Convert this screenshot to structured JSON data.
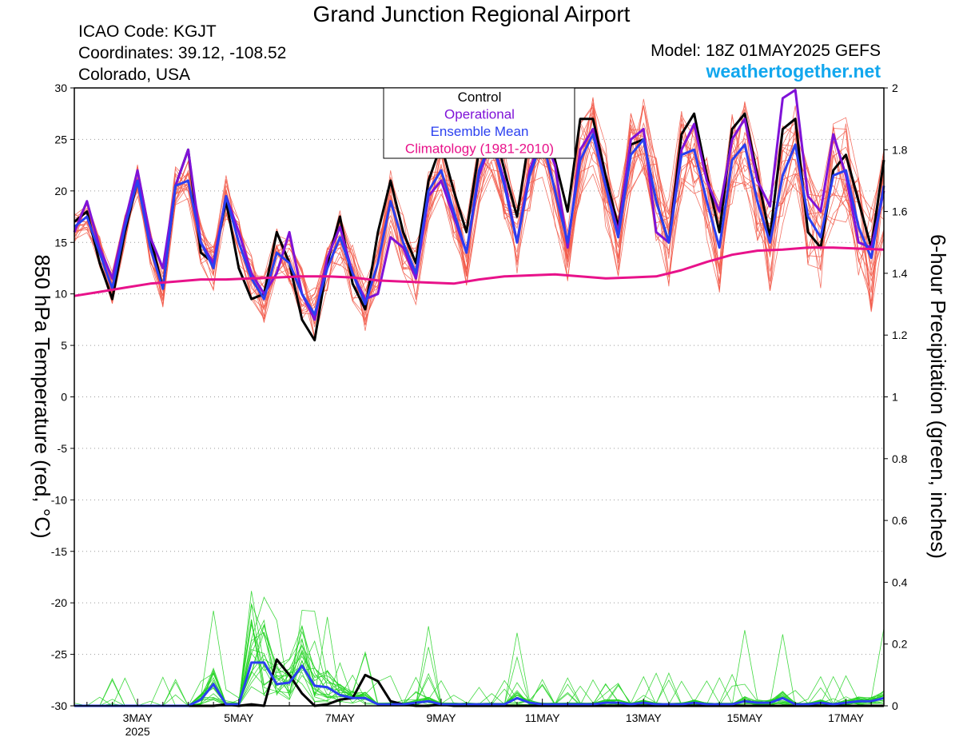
{
  "header": {
    "title": "Grand Junction Regional Airport",
    "icao": "ICAO Code: KGJT",
    "coordinates": "Coordinates: 39.12, -108.52",
    "region": "Colorado, USA",
    "model": "Model: 18Z 01MAY2025 GEFS",
    "site": "weathertogether.net"
  },
  "chart_data": {
    "type": "line",
    "title": "Grand Junction Regional Airport",
    "ylabel_left": "850 hPa Temperature (red, °C)",
    "ylabel_right": "6-hour Precipitation (green, inches)",
    "ylim_left": [
      -30,
      30
    ],
    "ylim_right": [
      0,
      2
    ],
    "y_ticks_left": [
      "30",
      "25",
      "20",
      "15",
      "10",
      "5",
      "0",
      "-5",
      "-10",
      "-15",
      "-20",
      "-25",
      "-30"
    ],
    "y_ticks_right": [
      "2",
      "1.8",
      "1.6",
      "1.4",
      "1.2",
      "1",
      "0.8",
      "0.6",
      "0.4",
      "0.2",
      "0"
    ],
    "x_ticks": [
      {
        "day": 3,
        "label": "3MAY",
        "sub": "2025"
      },
      {
        "day": 5,
        "label": "5MAY",
        "sub": ""
      },
      {
        "day": 7,
        "label": "7MAY",
        "sub": ""
      },
      {
        "day": 9,
        "label": "9MAY",
        "sub": ""
      },
      {
        "day": 11,
        "label": "11MAY",
        "sub": ""
      },
      {
        "day": 13,
        "label": "13MAY",
        "sub": ""
      },
      {
        "day": 15,
        "label": "15MAY",
        "sub": ""
      },
      {
        "day": 17,
        "label": "17MAY",
        "sub": ""
      }
    ],
    "x_range_days": [
      1.75,
      17.75
    ],
    "x_step_hours": 6,
    "grid": "dotted horizontal",
    "legend": {
      "placement": "top-center",
      "entries": [
        {
          "label": "Control",
          "color": "#000000"
        },
        {
          "label": "Operational",
          "color": "#7f12d8"
        },
        {
          "label": "Ensemble Mean",
          "color": "#2a3ff0"
        },
        {
          "label": "Climatology (1981-2010)",
          "color": "#e8128a"
        }
      ]
    },
    "colors": {
      "members_temp": "#f25a4a",
      "members_precip": "#1ed21e",
      "control": "#000000",
      "operational": "#7f12d8",
      "mean": "#2a3ff0",
      "climatology": "#e8128a"
    },
    "temperature_series": [
      {
        "name": "Control",
        "values": [
          17,
          18,
          13,
          9.5,
          16,
          21,
          15.5,
          10.5,
          20.5,
          24,
          14,
          13,
          19,
          12.5,
          9.5,
          10,
          16,
          13,
          7.5,
          5.5,
          13,
          17.5,
          11,
          8.5,
          16,
          21,
          16,
          13,
          21,
          24.5,
          20,
          16,
          24,
          27,
          22,
          17.5,
          25.5,
          27.5,
          23,
          18,
          27,
          27,
          21.5,
          16.5,
          24.5,
          25,
          19,
          15,
          25.5,
          27.5,
          21.5,
          16,
          26,
          27.5,
          21.5,
          15.5,
          26,
          27,
          16,
          14.5,
          22,
          23.5,
          19,
          14.5,
          23
        ]
      },
      {
        "name": "Operational",
        "values": [
          16,
          19,
          14.5,
          11.5,
          17,
          22,
          15.5,
          12.5,
          20.5,
          24,
          15,
          13,
          19.5,
          16,
          12,
          10,
          12,
          16,
          10,
          7.5,
          13.5,
          16.5,
          12,
          9.5,
          10,
          15.5,
          14.5,
          11.5,
          19.5,
          21,
          17.5,
          14,
          21.5,
          25,
          21,
          15,
          22,
          25.5,
          22.5,
          14.5,
          24,
          26,
          20.5,
          16,
          25,
          26,
          16,
          15,
          24,
          26.5,
          21,
          18,
          25,
          27,
          21,
          18.5,
          29,
          29.8,
          19.5,
          18,
          25.5,
          21.5,
          15,
          14.5,
          20
        ]
      },
      {
        "name": "Ensemble Mean",
        "values": [
          16.5,
          17.5,
          14,
          10.5,
          16.5,
          21,
          14.5,
          10.5,
          20.5,
          21,
          15,
          12.5,
          19.5,
          15,
          11.5,
          9.5,
          14,
          13,
          10,
          8,
          12.5,
          15.5,
          12,
          9,
          13,
          19,
          15,
          12,
          20,
          22,
          18,
          14,
          22,
          25,
          20.5,
          15,
          21.5,
          25,
          20,
          15,
          23,
          25.5,
          20.5,
          15.5,
          23.5,
          25,
          19,
          15,
          23.5,
          24,
          19,
          14.5,
          23,
          24.5,
          19,
          15,
          21.5,
          24.5,
          17.5,
          15.5,
          21.5,
          22,
          16.5,
          13.5,
          20.5
        ]
      },
      {
        "name": "Climatology (1981-2010)",
        "values": [
          9.8,
          10.2,
          10.6,
          11,
          11.2,
          11.4,
          11.4,
          11.5,
          11.6,
          11.7,
          11.7,
          11.6,
          11.3,
          11.2,
          11.1,
          11,
          11.4,
          11.7,
          11.8,
          11.9,
          11.7,
          11.5,
          11.6,
          11.7,
          12.3,
          13.1,
          13.8,
          14.2,
          14.3,
          14.5,
          14.5,
          14.3
        ]
      }
    ],
    "climatology_x_days": [
      1.75,
      2.25,
      2.75,
      3.25,
      3.75,
      4.25,
      4.75,
      5.25,
      5.75,
      6.25,
      6.75,
      7.25,
      7.75,
      8.25,
      8.75,
      9.25,
      9.75,
      10.25,
      10.75,
      11.25,
      11.75,
      12.25,
      12.75,
      13.25,
      13.75,
      14.25,
      14.75,
      15.25,
      15.75,
      16.25,
      16.75,
      17.75
    ],
    "precipitation_series": [
      {
        "name": "Control",
        "values": [
          0,
          0,
          0,
          0,
          0,
          0,
          0,
          0,
          0,
          0,
          0,
          0,
          0.005,
          0,
          0.005,
          0,
          0.15,
          0.1,
          0.04,
          0,
          0.005,
          0.02,
          0.025,
          0.1,
          0.08,
          0.015,
          0.005,
          0,
          0,
          0.005,
          0,
          0,
          0,
          0,
          0,
          0,
          0,
          0,
          0,
          0,
          0,
          0,
          0,
          0,
          0,
          0,
          0,
          0,
          0,
          0,
          0,
          0,
          0,
          0,
          0,
          0,
          0,
          0,
          0,
          0,
          0,
          0,
          0,
          0,
          0
        ]
      },
      {
        "name": "Ensemble Mean",
        "values": [
          0,
          0,
          0,
          0,
          0,
          0,
          0,
          0,
          0,
          0,
          0.02,
          0.07,
          0.005,
          0.005,
          0.14,
          0.14,
          0.07,
          0.075,
          0.13,
          0.065,
          0.06,
          0.035,
          0.025,
          0.025,
          0.005,
          0.005,
          0.005,
          0.01,
          0.015,
          0.005,
          0.005,
          0.005,
          0.005,
          0.005,
          0.005,
          0.025,
          0.01,
          0.005,
          0.005,
          0.005,
          0.005,
          0.005,
          0.01,
          0.01,
          0.005,
          0.01,
          0.005,
          0.005,
          0.005,
          0.01,
          0.005,
          0.005,
          0.005,
          0.015,
          0.01,
          0.01,
          0.025,
          0.005,
          0.005,
          0.01,
          0.005,
          0.01,
          0.015,
          0.015,
          0.025
        ]
      }
    ]
  }
}
